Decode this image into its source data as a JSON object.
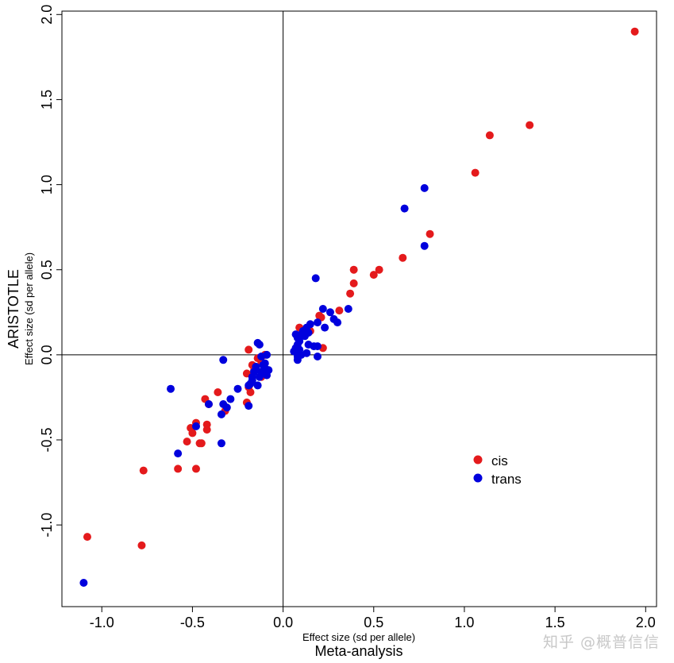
{
  "watermark": "知乎 @概普信信",
  "chart_data": {
    "type": "scatter",
    "title": "",
    "xlabel": "Meta-analysis",
    "xsublabel": "Effect size (sd per allele)",
    "ylabel": "ARISTOTLE",
    "ysublabel": "Effect size (sd per allele)",
    "xlim": [
      -1.22,
      2.06
    ],
    "ylim": [
      -1.48,
      2.02
    ],
    "xticks": [
      -1.0,
      -0.5,
      0.0,
      0.5,
      1.0,
      1.5,
      2.0
    ],
    "yticks": [
      -1.0,
      -0.5,
      0.0,
      0.5,
      1.0,
      1.5,
      2.0
    ],
    "xtick_labels": [
      "-1.0",
      "-0.5",
      "0.0",
      "0.5",
      "1.0",
      "1.5",
      "2.0"
    ],
    "ytick_labels": [
      "-1.0",
      "-0.5",
      "0.0",
      "0.5",
      "1.0",
      "1.5",
      "2.0"
    ],
    "reference_lines": {
      "x": 0,
      "y": 0
    },
    "grid": false,
    "legend_position": "lower-right",
    "series": [
      {
        "name": "cis",
        "color": "#e41a1c",
        "points": [
          [
            1.94,
            1.9
          ],
          [
            1.36,
            1.35
          ],
          [
            1.14,
            1.29
          ],
          [
            1.06,
            1.07
          ],
          [
            0.81,
            0.71
          ],
          [
            0.66,
            0.57
          ],
          [
            0.53,
            0.5
          ],
          [
            0.5,
            0.47
          ],
          [
            0.39,
            0.5
          ],
          [
            0.39,
            0.42
          ],
          [
            0.37,
            0.36
          ],
          [
            0.31,
            0.26
          ],
          [
            0.21,
            0.22
          ],
          [
            0.22,
            0.04
          ],
          [
            0.2,
            0.23
          ],
          [
            0.09,
            0.16
          ],
          [
            0.15,
            0.14
          ],
          [
            -0.1,
            0.0
          ],
          [
            -0.12,
            -0.04
          ],
          [
            -0.14,
            -0.02
          ],
          [
            -0.17,
            -0.06
          ],
          [
            -0.16,
            -0.09
          ],
          [
            -0.2,
            -0.11
          ],
          [
            -0.19,
            -0.19
          ],
          [
            -0.18,
            -0.22
          ],
          [
            -0.2,
            -0.28
          ],
          [
            -0.19,
            0.03
          ],
          [
            -0.12,
            -0.13
          ],
          [
            -0.1,
            -0.08
          ],
          [
            -0.36,
            -0.22
          ],
          [
            -0.32,
            -0.33
          ],
          [
            -0.41,
            -0.29
          ],
          [
            -0.43,
            -0.26
          ],
          [
            -0.42,
            -0.41
          ],
          [
            -0.42,
            -0.44
          ],
          [
            -0.48,
            -0.4
          ],
          [
            -0.51,
            -0.43
          ],
          [
            -0.5,
            -0.46
          ],
          [
            -0.46,
            -0.52
          ],
          [
            -0.45,
            -0.52
          ],
          [
            -0.53,
            -0.51
          ],
          [
            -0.48,
            -0.67
          ],
          [
            -0.58,
            -0.67
          ],
          [
            -0.77,
            -0.68
          ],
          [
            -0.78,
            -1.12
          ],
          [
            -1.08,
            -1.07
          ]
        ]
      },
      {
        "name": "trans",
        "color": "#0000dd",
        "points": [
          [
            0.78,
            0.98
          ],
          [
            0.67,
            0.86
          ],
          [
            0.78,
            0.64
          ],
          [
            0.18,
            0.45
          ],
          [
            0.36,
            0.27
          ],
          [
            0.22,
            0.27
          ],
          [
            0.26,
            0.25
          ],
          [
            0.28,
            0.21
          ],
          [
            0.3,
            0.19
          ],
          [
            0.23,
            0.16
          ],
          [
            0.19,
            0.19
          ],
          [
            0.19,
            0.05
          ],
          [
            0.17,
            0.05
          ],
          [
            0.19,
            -0.01
          ],
          [
            0.15,
            0.18
          ],
          [
            0.13,
            0.16
          ],
          [
            0.14,
            0.13
          ],
          [
            0.12,
            0.11
          ],
          [
            0.1,
            0.12
          ],
          [
            0.09,
            0.08
          ],
          [
            0.08,
            0.1
          ],
          [
            0.07,
            0.12
          ],
          [
            0.08,
            0.06
          ],
          [
            0.09,
            0.03
          ],
          [
            0.07,
            0.04
          ],
          [
            0.1,
            0.0
          ],
          [
            0.13,
            0.01
          ],
          [
            0.08,
            -0.01
          ],
          [
            0.08,
            -0.03
          ],
          [
            0.14,
            0.06
          ],
          [
            0.11,
            0.14
          ],
          [
            0.06,
            0.02
          ],
          [
            -0.1,
            -0.08
          ],
          [
            -0.08,
            -0.09
          ],
          [
            -0.09,
            -0.12
          ],
          [
            -0.12,
            -0.1
          ],
          [
            -0.13,
            -0.13
          ],
          [
            -0.1,
            -0.05
          ],
          [
            -0.15,
            -0.07
          ],
          [
            -0.16,
            -0.1
          ],
          [
            -0.17,
            -0.13
          ],
          [
            -0.17,
            -0.15
          ],
          [
            -0.18,
            -0.17
          ],
          [
            -0.14,
            -0.18
          ],
          [
            -0.11,
            -0.06
          ],
          [
            -0.12,
            -0.01
          ],
          [
            -0.14,
            0.07
          ],
          [
            -0.13,
            0.06
          ],
          [
            -0.09,
            0.0
          ],
          [
            -0.33,
            -0.03
          ],
          [
            -0.19,
            -0.18
          ],
          [
            -0.25,
            -0.2
          ],
          [
            -0.29,
            -0.26
          ],
          [
            -0.31,
            -0.31
          ],
          [
            -0.34,
            -0.35
          ],
          [
            -0.19,
            -0.3
          ],
          [
            -0.33,
            -0.29
          ],
          [
            -0.48,
            -0.42
          ],
          [
            -0.41,
            -0.29
          ],
          [
            -0.62,
            -0.2
          ],
          [
            -0.34,
            -0.52
          ],
          [
            -0.58,
            -0.58
          ],
          [
            -1.1,
            -1.34
          ]
        ]
      }
    ]
  }
}
